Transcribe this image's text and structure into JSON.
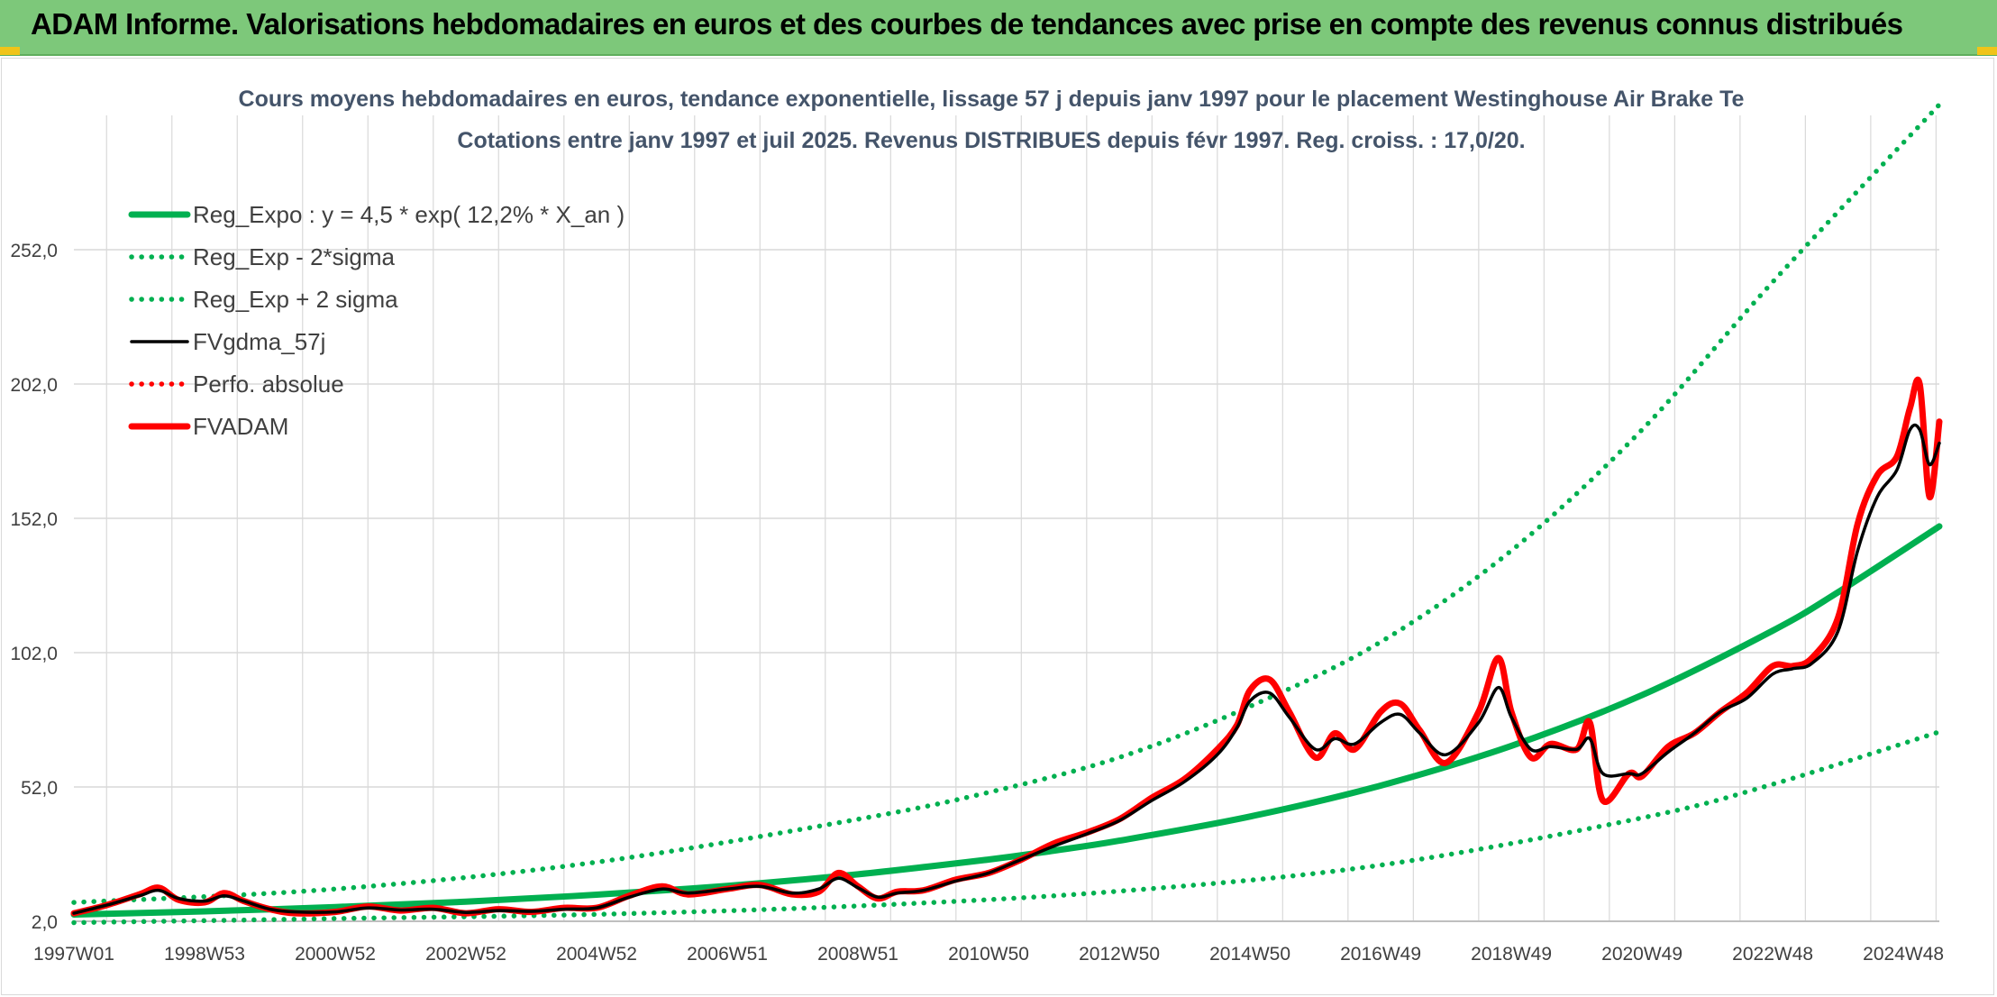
{
  "header": {
    "title": "ADAM Informe. Valorisations hebdomadaires en euros et des courbes de tendances avec prise en compte des revenus connus distribués"
  },
  "colors": {
    "banner": "#7dc87a",
    "reg_green": "#00b050",
    "red": "#ff0000",
    "black": "#000000",
    "grid": "#d9d9d9",
    "title_text": "#44546a"
  },
  "chart_data": {
    "type": "line",
    "title": "Cours moyens hebdomadaires en euros, tendance exponentielle, lissage 57 j depuis janv 1997 pour le placement Westinghouse Air Brake Te",
    "subtitle": "Cotations entre janv 1997 et juil 2025. Revenus DISTRIBUES depuis févr 1997. Reg. croiss. : 17,0/20.",
    "xlabel": "",
    "ylabel": "",
    "x_range": [
      1997.0,
      2025.55
    ],
    "ylim": [
      2.0,
      302.0
    ],
    "y_ticks": [
      "2,0",
      "52,0",
      "102,0",
      "152,0",
      "202,0",
      "252,0"
    ],
    "y_tick_values": [
      2,
      52,
      102,
      152,
      202,
      252
    ],
    "x_ticks": [
      "1997W01",
      "1998W53",
      "2000W52",
      "2002W52",
      "2004W52",
      "2006W51",
      "2008W51",
      "2010W50",
      "2012W50",
      "2014W50",
      "2016W49",
      "2018W49",
      "2020W49",
      "2022W48",
      "2024W48"
    ],
    "x_tick_values": [
      1997.0,
      1999.0,
      2001.0,
      2003.0,
      2005.0,
      2007.0,
      2009.0,
      2011.0,
      2013.0,
      2015.0,
      2017.0,
      2019.0,
      2021.0,
      2023.0,
      2025.0
    ],
    "grid": true,
    "legend_position": "top-left",
    "legend": [
      {
        "label": "Reg_Expo : y = 4,5 * exp( 12,2% *  X_an )",
        "series": "reg_expo"
      },
      {
        "label": "Reg_Exp - 2*sigma",
        "series": "reg_minus"
      },
      {
        "label": "Reg_Exp + 2 sigma",
        "series": "reg_plus"
      },
      {
        "label": "FVgdma_57j",
        "series": "fvgdma"
      },
      {
        "label": "Perfo. absolue",
        "series": "perfo"
      },
      {
        "label": "FVADAM",
        "series": "fvadam"
      }
    ],
    "series": [
      {
        "id": "reg_expo",
        "style": "solid-thick",
        "color": "#00b050",
        "x": [
          1997.0,
          1999.0,
          2001.0,
          2003.0,
          2005.0,
          2007.0,
          2009.0,
          2011.0,
          2012.0,
          2013.0,
          2015.0,
          2017.0,
          2019.0,
          2021.0,
          2023.0,
          2024.0,
          2025.55
        ],
        "values": [
          4.5,
          5.7,
          7.3,
          9.3,
          11.9,
          15.2,
          19.5,
          25.0,
          28.3,
          32.0,
          41.0,
          52.5,
          67.3,
          86.2,
          110.2,
          124.5,
          149.0
        ]
      },
      {
        "id": "reg_minus",
        "style": "dotted",
        "color": "#00b050",
        "x": [
          1997.0,
          2001.0,
          2005.0,
          2009.0,
          2013.0,
          2017.0,
          2021.0,
          2023.0,
          2025.55
        ],
        "values": [
          1.5,
          3.0,
          4.6,
          7.7,
          13.2,
          22.9,
          40.5,
          53.0,
          72.5
        ]
      },
      {
        "id": "reg_plus",
        "style": "dotted",
        "color": "#00b050",
        "x": [
          1997.0,
          2001.0,
          2005.0,
          2009.0,
          2011.0,
          2013.0,
          2015.0,
          2017.0,
          2019.0,
          2021.0,
          2023.0,
          2025.55
        ],
        "values": [
          9.0,
          14.0,
          24.0,
          40.0,
          50.0,
          63.0,
          82.0,
          106.0,
          140.0,
          185.0,
          240.0,
          306.0
        ]
      },
      {
        "id": "perfo",
        "style": "dotted",
        "color": "#ff0000",
        "x": [],
        "values": []
      },
      {
        "id": "fvadam",
        "style": "solid-thick",
        "color": "#ff0000",
        "x": [
          1997.0,
          1997.5,
          1998.0,
          1998.3,
          1998.6,
          1999.0,
          1999.3,
          1999.6,
          2000.0,
          2000.4,
          2001.0,
          2001.5,
          2002.0,
          2002.5,
          2003.0,
          2003.5,
          2004.0,
          2004.5,
          2005.0,
          2005.5,
          2006.0,
          2006.4,
          2007.0,
          2007.5,
          2008.0,
          2008.4,
          2008.7,
          2009.0,
          2009.3,
          2009.6,
          2010.0,
          2010.5,
          2011.0,
          2011.5,
          2012.0,
          2012.5,
          2013.0,
          2013.5,
          2014.0,
          2014.5,
          2014.8,
          2015.0,
          2015.3,
          2015.6,
          2016.0,
          2016.3,
          2016.6,
          2017.0,
          2017.3,
          2017.6,
          2018.0,
          2018.5,
          2018.8,
          2019.0,
          2019.3,
          2019.6,
          2020.0,
          2020.2,
          2020.4,
          2020.8,
          2021.0,
          2021.4,
          2021.8,
          2022.2,
          2022.6,
          2023.0,
          2023.3,
          2023.6,
          2024.0,
          2024.3,
          2024.6,
          2024.9,
          2025.1,
          2025.25,
          2025.4,
          2025.55
        ],
        "values": [
          5.0,
          8.0,
          12.0,
          14.5,
          10.0,
          9.0,
          12.5,
          9.5,
          6.5,
          5.0,
          5.5,
          7.5,
          6.0,
          7.0,
          5.0,
          6.5,
          5.5,
          7.0,
          7.0,
          11.5,
          15.0,
          12.0,
          14.0,
          15.5,
          12.0,
          13.0,
          20.0,
          15.0,
          10.5,
          13.0,
          13.5,
          17.5,
          20.0,
          25.0,
          31.0,
          35.0,
          40.0,
          48.0,
          55.0,
          66.0,
          75.0,
          88.0,
          92.0,
          80.0,
          63.0,
          72.0,
          66.0,
          80.0,
          83.0,
          73.0,
          61.0,
          80.0,
          100.0,
          80.0,
          63.0,
          68.0,
          66.0,
          76.0,
          47.0,
          57.0,
          56.0,
          67.0,
          72.0,
          80.0,
          87.0,
          97.0,
          97.0,
          100.0,
          115.0,
          150.0,
          168.0,
          175.0,
          193.0,
          202.0,
          160.0,
          188.0
        ]
      },
      {
        "id": "fvgdma",
        "style": "solid",
        "color": "#000000",
        "x": [
          1997.0,
          1997.5,
          1998.0,
          1998.3,
          1998.6,
          1999.0,
          1999.3,
          1999.6,
          2000.0,
          2000.4,
          2001.0,
          2001.5,
          2002.0,
          2002.5,
          2003.0,
          2003.5,
          2004.0,
          2004.5,
          2005.0,
          2005.5,
          2006.0,
          2006.4,
          2007.0,
          2007.5,
          2008.0,
          2008.4,
          2008.7,
          2009.0,
          2009.3,
          2009.6,
          2010.0,
          2010.5,
          2011.0,
          2011.5,
          2012.0,
          2012.5,
          2013.0,
          2013.5,
          2014.0,
          2014.5,
          2014.8,
          2015.0,
          2015.3,
          2015.6,
          2016.0,
          2016.3,
          2016.6,
          2017.0,
          2017.3,
          2017.6,
          2018.0,
          2018.5,
          2018.8,
          2019.0,
          2019.3,
          2019.6,
          2020.0,
          2020.2,
          2020.4,
          2020.8,
          2021.0,
          2021.4,
          2021.8,
          2022.2,
          2022.6,
          2023.0,
          2023.3,
          2023.6,
          2024.0,
          2024.3,
          2024.6,
          2024.9,
          2025.1,
          2025.25,
          2025.4,
          2025.55
        ],
        "values": [
          5.0,
          8.0,
          11.5,
          13.5,
          10.5,
          9.5,
          11.5,
          9.5,
          6.5,
          5.5,
          5.5,
          7.0,
          6.2,
          6.5,
          5.3,
          6.0,
          5.7,
          6.5,
          7.0,
          11.0,
          14.0,
          12.5,
          14.0,
          15.0,
          12.5,
          14.0,
          18.0,
          14.5,
          11.0,
          12.5,
          13.5,
          17.0,
          20.0,
          25.0,
          30.0,
          34.5,
          39.5,
          47.0,
          54.0,
          64.0,
          74.0,
          84.0,
          87.0,
          78.0,
          66.0,
          70.0,
          68.0,
          76.0,
          79.0,
          72.0,
          64.0,
          76.0,
          89.0,
          78.0,
          66.0,
          67.0,
          66.0,
          70.0,
          57.0,
          57.0,
          57.0,
          65.0,
          72.0,
          80.0,
          85.0,
          94.0,
          96.0,
          98.0,
          110.0,
          140.0,
          160.0,
          170.0,
          185.0,
          185.0,
          172.0,
          180.0
        ]
      }
    ]
  }
}
